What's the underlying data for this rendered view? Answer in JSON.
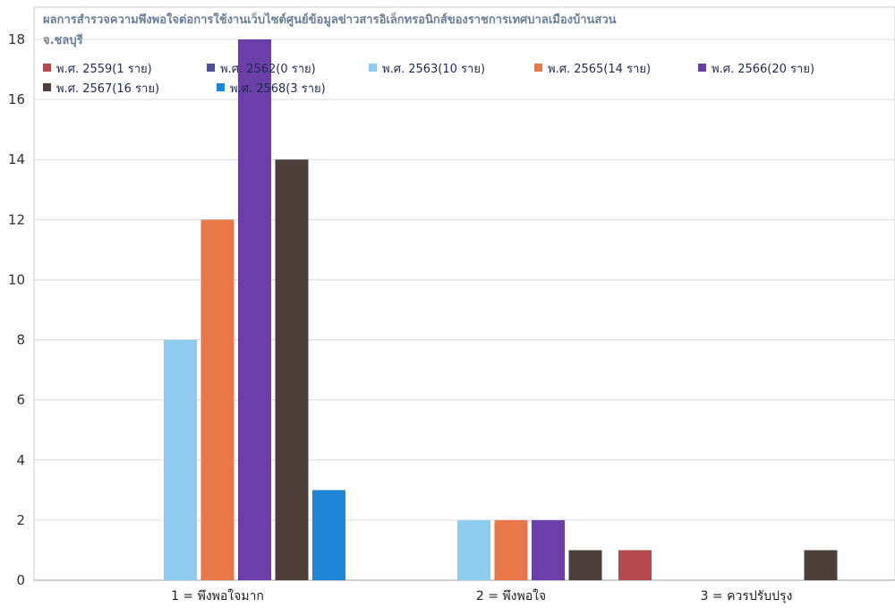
{
  "chart_data": {
    "type": "bar",
    "title": "ผลการสำรวจความพึงพอใจต่อการใช้งานเว็บไซต์ศูนย์ข้อมูลข่าวสารอิเล็กทรอนิกส์ของราชการเทศบาลเมืองบ้านสวน",
    "subtitle": "จ.ชลบุรี",
    "xlabel": "",
    "ylabel": "",
    "ylim": [
      0,
      18
    ],
    "yticks": [
      "0",
      "2",
      "4",
      "6",
      "8",
      "10",
      "12",
      "14",
      "16",
      "18"
    ],
    "grid": true,
    "legend_position": "top-left",
    "categories": [
      "1 = พึงพอใจมาก",
      "2 = พึงพอใจ",
      "3 = ควรปรับปรุง"
    ],
    "series": [
      {
        "name": "พ.ศ. 2559(1 ราย)",
        "color": "#b5474f",
        "values": [
          0,
          0,
          1
        ]
      },
      {
        "name": "พ.ศ. 2562(0 ราย)",
        "color": "#4a4fa0",
        "values": [
          0,
          0,
          0
        ]
      },
      {
        "name": "พ.ศ. 2563(10 ราย)",
        "color": "#8fcbee",
        "values": [
          8,
          2,
          0
        ]
      },
      {
        "name": "พ.ศ. 2565(14 ราย)",
        "color": "#e8774a",
        "values": [
          12,
          2,
          0
        ]
      },
      {
        "name": "พ.ศ. 2566(20 ราย)",
        "color": "#6a3fa8",
        "values": [
          18,
          2,
          0
        ]
      },
      {
        "name": "พ.ศ. 2567(16 ราย)",
        "color": "#4d403b",
        "values": [
          14,
          1,
          1
        ]
      },
      {
        "name": "พ.ศ. 2568(3 ราย)",
        "color": "#1f86d6",
        "values": [
          3,
          0,
          0
        ]
      }
    ]
  }
}
